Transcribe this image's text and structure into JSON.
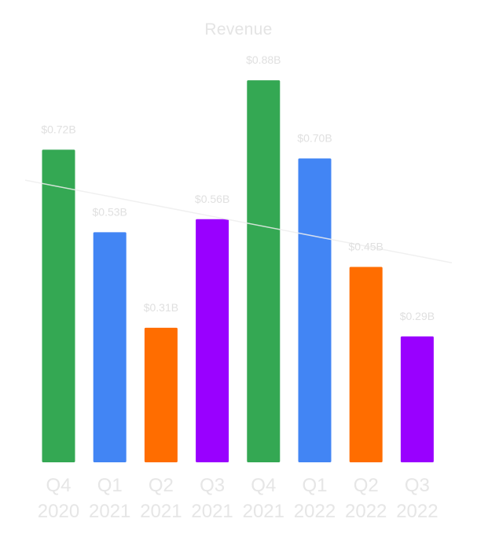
{
  "chart_data": {
    "type": "bar",
    "title": "Revenue",
    "xlabel": "",
    "ylabel": "",
    "ylim": [
      0,
      0.92
    ],
    "grid": false,
    "legend": "none",
    "categories": [
      [
        "Q4",
        "2020"
      ],
      [
        "Q1",
        "2021"
      ],
      [
        "Q2",
        "2021"
      ],
      [
        "Q3",
        "2021"
      ],
      [
        "Q4",
        "2021"
      ],
      [
        "Q1",
        "2022"
      ],
      [
        "Q2",
        "2022"
      ],
      [
        "Q3",
        "2022"
      ]
    ],
    "values": [
      0.72,
      0.53,
      0.31,
      0.56,
      0.88,
      0.7,
      0.45,
      0.29
    ],
    "value_labels": [
      "$0.72B",
      "$0.53B",
      "$0.31B",
      "$0.56B",
      "$0.88B",
      "$0.70B",
      "$0.45B",
      "$0.29B"
    ],
    "bar_colors": [
      "#34a853",
      "#4285f4",
      "#ff6d00",
      "#9900ff",
      "#34a853",
      "#4285f4",
      "#ff6d00",
      "#9900ff"
    ],
    "trendline": {
      "type": "linear",
      "color": "#eeeeee"
    }
  }
}
